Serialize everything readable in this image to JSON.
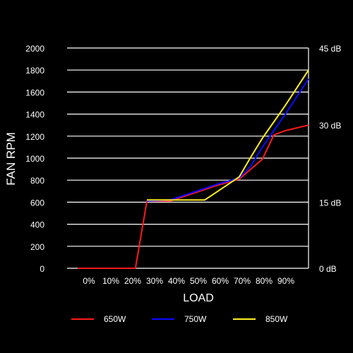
{
  "chart_data": {
    "type": "line",
    "xlabel": "LOAD",
    "ylabel": "FAN RPM",
    "x_ticks": [
      "0%",
      "10%",
      "20%",
      "30%",
      "40%",
      "50%",
      "60%",
      "70%",
      "80%",
      "90%"
    ],
    "xlim": [
      0,
      100
    ],
    "ylim": [
      0,
      2000
    ],
    "y_ticks": [
      0,
      200,
      400,
      600,
      800,
      1000,
      1200,
      1400,
      1600,
      1800,
      2000
    ],
    "y2_ticks": [
      {
        "rpm": 0,
        "label": "0 dB"
      },
      {
        "rpm": 600,
        "label": "15 dB"
      },
      {
        "rpm": 1300,
        "label": "30 dB"
      },
      {
        "rpm": 2000,
        "label": "45 dB"
      }
    ],
    "grid": true,
    "legend_position": "bottom",
    "series": [
      {
        "name": "650W",
        "color": "#ff1a1a",
        "points": [
          [
            0,
            0
          ],
          [
            25,
            0
          ],
          [
            30,
            610
          ],
          [
            40,
            610
          ],
          [
            50,
            680
          ],
          [
            60,
            750
          ],
          [
            70,
            810
          ],
          [
            80,
            990
          ],
          [
            85,
            1210
          ],
          [
            90,
            1250
          ],
          [
            100,
            1300
          ]
        ]
      },
      {
        "name": "750W",
        "color": "#0a0aff",
        "points": [
          [
            30,
            610
          ],
          [
            40,
            620
          ],
          [
            50,
            690
          ],
          [
            60,
            760
          ],
          [
            65,
            790
          ],
          [
            70,
            820
          ],
          [
            75,
            930
          ],
          [
            80,
            1100
          ],
          [
            90,
            1400
          ],
          [
            100,
            1720
          ]
        ]
      },
      {
        "name": "850W",
        "color": "#ffee22",
        "points": [
          [
            30,
            620
          ],
          [
            40,
            620
          ],
          [
            55,
            620
          ],
          [
            60,
            690
          ],
          [
            70,
            830
          ],
          [
            75,
            1010
          ],
          [
            80,
            1180
          ],
          [
            90,
            1480
          ],
          [
            100,
            1800
          ]
        ]
      }
    ]
  }
}
